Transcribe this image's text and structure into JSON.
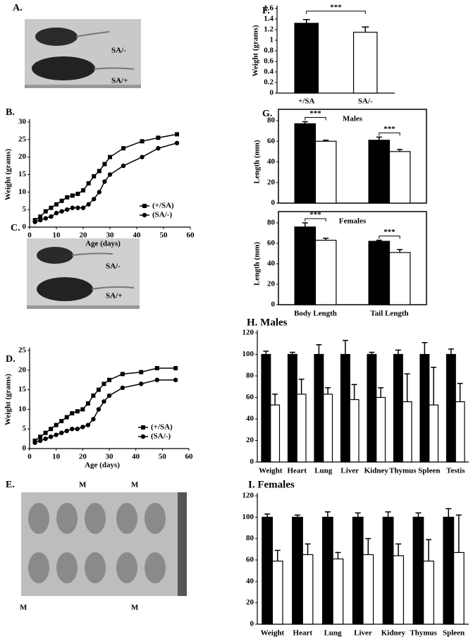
{
  "photos": {
    "A": {
      "panel": "A.",
      "labels": [
        "SA/-",
        "SA/+"
      ]
    },
    "C": {
      "panel": "C.",
      "labels": [
        "SA/-",
        "SA/+"
      ]
    },
    "E": {
      "panel": "E.",
      "labels": [
        "M",
        "M",
        "M",
        "M"
      ]
    }
  },
  "chart_data": [
    {
      "type": "line",
      "panel": "B.",
      "xlabel": "Age (days)",
      "ylabel": "Weight (grams)",
      "x": [
        2,
        4,
        6,
        8,
        10,
        12,
        14,
        16,
        18,
        20,
        22,
        24,
        26,
        28,
        30,
        35,
        42,
        48,
        55
      ],
      "series": [
        {
          "name": "(+/SA)",
          "color": "#000000",
          "marker": "square",
          "values": [
            2,
            3,
            4.5,
            5.5,
            6.5,
            7.5,
            8.5,
            9,
            9.5,
            10.5,
            12.5,
            14.5,
            16,
            18,
            20,
            22.5,
            24.5,
            25.5,
            26.5
          ]
        },
        {
          "name": "(SA/-)",
          "color": "#000000",
          "marker": "circle",
          "values": [
            1.5,
            2,
            2.5,
            3,
            4,
            4.5,
            5,
            5.5,
            5.5,
            5.5,
            6.5,
            8,
            10,
            13,
            15,
            17.5,
            20,
            22.5,
            24
          ]
        }
      ],
      "xlim": [
        0,
        60
      ],
      "xticks": [
        0,
        10,
        20,
        30,
        40,
        50,
        60
      ],
      "ylim": [
        0,
        30
      ],
      "yticks": [
        0,
        5,
        10,
        15,
        20,
        25,
        30
      ],
      "legend": "lower right"
    },
    {
      "type": "line",
      "panel": "D.",
      "xlabel": "Age (days)",
      "ylabel": "Weight (grams)",
      "x": [
        2,
        4,
        6,
        8,
        10,
        12,
        14,
        16,
        18,
        20,
        22,
        24,
        26,
        28,
        30,
        35,
        42,
        48,
        55
      ],
      "series": [
        {
          "name": "(+/SA)",
          "color": "#000000",
          "marker": "square",
          "values": [
            2,
            3,
            4,
            5,
            6,
            7,
            8,
            9,
            9.5,
            10,
            11.5,
            13.5,
            15,
            16.5,
            17.5,
            19,
            19.5,
            20.5,
            20.5
          ]
        },
        {
          "name": "(SA/-)",
          "color": "#000000",
          "marker": "circle",
          "values": [
            1.5,
            2,
            2.5,
            3,
            3.5,
            4,
            4.5,
            5,
            5,
            5.5,
            6,
            7.5,
            10,
            12,
            13.5,
            15.5,
            16.5,
            17.5,
            17.5
          ]
        }
      ],
      "xlim": [
        0,
        60
      ],
      "xticks": [
        0,
        10,
        20,
        30,
        40,
        50,
        60
      ],
      "ylim": [
        0,
        25
      ],
      "yticks": [
        0,
        5,
        10,
        15,
        20,
        25
      ],
      "legend": "lower right"
    },
    {
      "type": "bar",
      "panel": "F.",
      "ylabel": "Weight (grams)",
      "categories": [
        "+/SA",
        "SA/-"
      ],
      "values": [
        1.32,
        1.15
      ],
      "errors": [
        0.07,
        0.1
      ],
      "colors": [
        "#000000",
        "#ffffff"
      ],
      "ylim": [
        0,
        1.6
      ],
      "yticks": [
        0,
        0.2,
        0.4,
        0.6,
        0.8,
        1,
        1.2,
        1.4,
        1.6
      ],
      "significance": "***"
    },
    {
      "type": "grouped_bar",
      "panel": "G.",
      "title": "Males",
      "ylabel": "Length (mm)",
      "categories": [
        null,
        null
      ],
      "series": [
        {
          "color": "#000000",
          "values": [
            77,
            61
          ],
          "errors": [
            2,
            3
          ]
        },
        {
          "color": "#ffffff",
          "values": [
            60,
            50
          ],
          "errors": [
            1,
            2
          ]
        }
      ],
      "ylim": [
        0,
        80
      ],
      "yticks": [
        0,
        20,
        40,
        60,
        80
      ],
      "significance": [
        "***",
        "***"
      ],
      "frame": true
    },
    {
      "type": "grouped_bar",
      "title": "Females",
      "ylabel": "Length (mm)",
      "categories": [
        "Body Length",
        "Tail Length"
      ],
      "series": [
        {
          "color": "#000000",
          "values": [
            76,
            62
          ],
          "errors": [
            4,
            1
          ]
        },
        {
          "color": "#ffffff",
          "values": [
            63,
            51
          ],
          "errors": [
            2,
            3
          ]
        }
      ],
      "ylim": [
        0,
        80
      ],
      "yticks": [
        0,
        20,
        40,
        60,
        80
      ],
      "significance": [
        "***",
        "***"
      ],
      "frame": true
    },
    {
      "type": "grouped_bar",
      "title": "H. Males",
      "categories": [
        "Weight",
        "Heart",
        "Lung",
        "Liver",
        "Kidney",
        "Thymus",
        "Spleen",
        "Testis"
      ],
      "series": [
        {
          "color": "#000000",
          "values": [
            100,
            100,
            100,
            100,
            100,
            100,
            100,
            100
          ],
          "errors": [
            3,
            2,
            9,
            13,
            2,
            4,
            11,
            5
          ]
        },
        {
          "color": "#ffffff",
          "values": [
            53,
            63,
            63,
            58,
            60,
            56,
            53,
            56
          ],
          "errors": [
            10,
            14,
            6,
            14,
            9,
            26,
            35,
            17
          ]
        }
      ],
      "ylim": [
        0,
        120
      ],
      "yticks": [
        0,
        20,
        40,
        60,
        80,
        100,
        120
      ]
    },
    {
      "type": "grouped_bar",
      "title": "I. Females",
      "categories": [
        "Weight",
        "Heart",
        "Lung",
        "Liver",
        "Kidney",
        "Thymus",
        "Spleen"
      ],
      "series": [
        {
          "color": "#000000",
          "values": [
            100,
            100,
            100,
            100,
            100,
            100,
            100
          ],
          "errors": [
            3,
            2,
            5,
            4,
            5,
            4,
            8
          ]
        },
        {
          "color": "#ffffff",
          "values": [
            59,
            65,
            61,
            65,
            64,
            59,
            67
          ],
          "errors": [
            10,
            10,
            6,
            15,
            11,
            20,
            35
          ]
        }
      ],
      "ylim": [
        0,
        120
      ],
      "yticks": [
        0,
        20,
        40,
        60,
        80,
        100,
        120
      ]
    }
  ]
}
